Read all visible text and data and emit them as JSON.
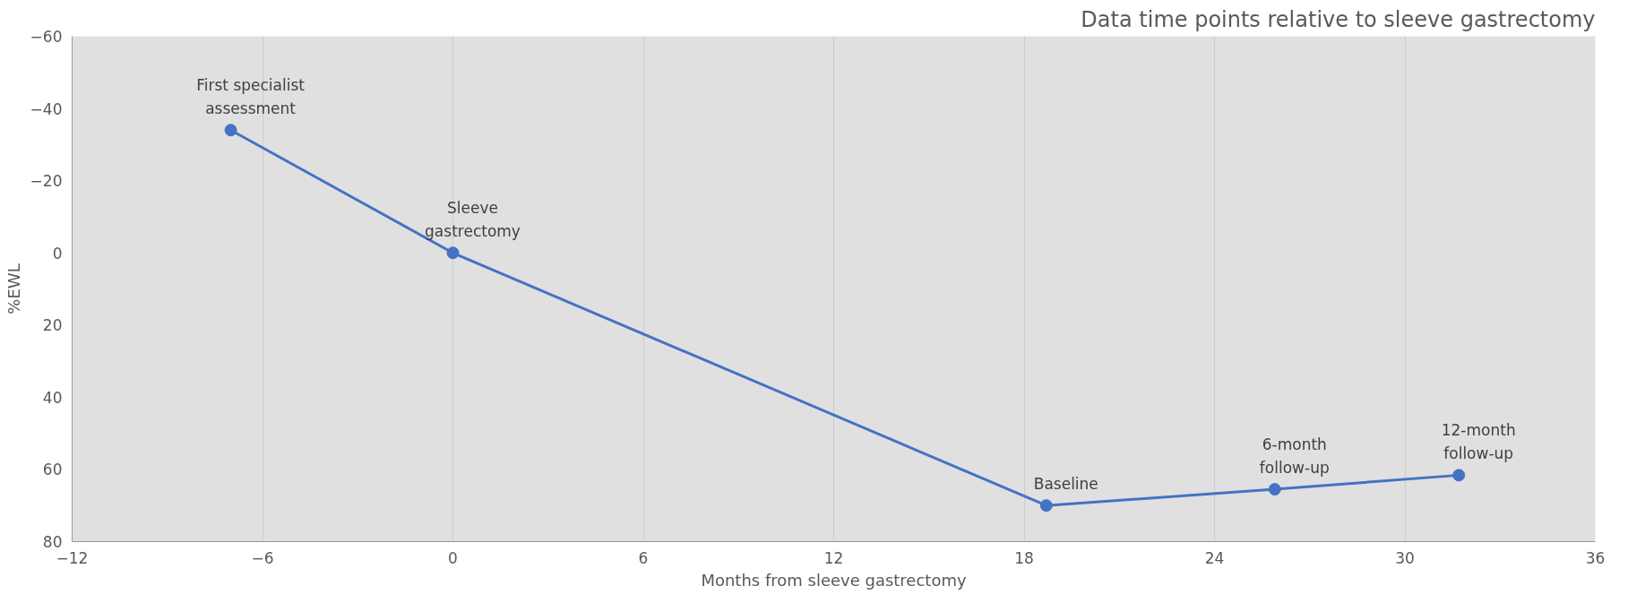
{
  "chart_data": {
    "type": "line",
    "title": "Data time points relative to sleeve gastrectomy",
    "xlabel": "Months from sleeve gastrectomy",
    "ylabel": "%EWL",
    "x": [
      -7,
      0,
      18.7,
      25.9,
      31.7
    ],
    "series": [
      {
        "color": "#4472c4",
        "values": [
          -34,
          0,
          70,
          65.5,
          61.6
        ]
      }
    ],
    "annotations": [
      {
        "text": "First specialist\nassessment",
        "x": -7,
        "y": -34
      },
      {
        "text": "Sleeve\ngastrectomy",
        "x": 0,
        "y": 0
      },
      {
        "text": "Baseline",
        "x": 18.7,
        "y": 70
      },
      {
        "text": "6-month\nfollow-up",
        "x": 25.9,
        "y": 65.5
      },
      {
        "text": "12-month\nfollow-up",
        "x": 31.7,
        "y": 61.6
      }
    ],
    "xlim": [
      -12,
      36
    ],
    "xticks": [
      -12,
      -6,
      0,
      6,
      12,
      18,
      24,
      30,
      36
    ],
    "ylim": [
      80,
      -60
    ],
    "yticks": [
      -60,
      -40,
      -20,
      0,
      20,
      40,
      60,
      80
    ],
    "grid": "x",
    "marker": "circle",
    "line_style": "solid"
  }
}
